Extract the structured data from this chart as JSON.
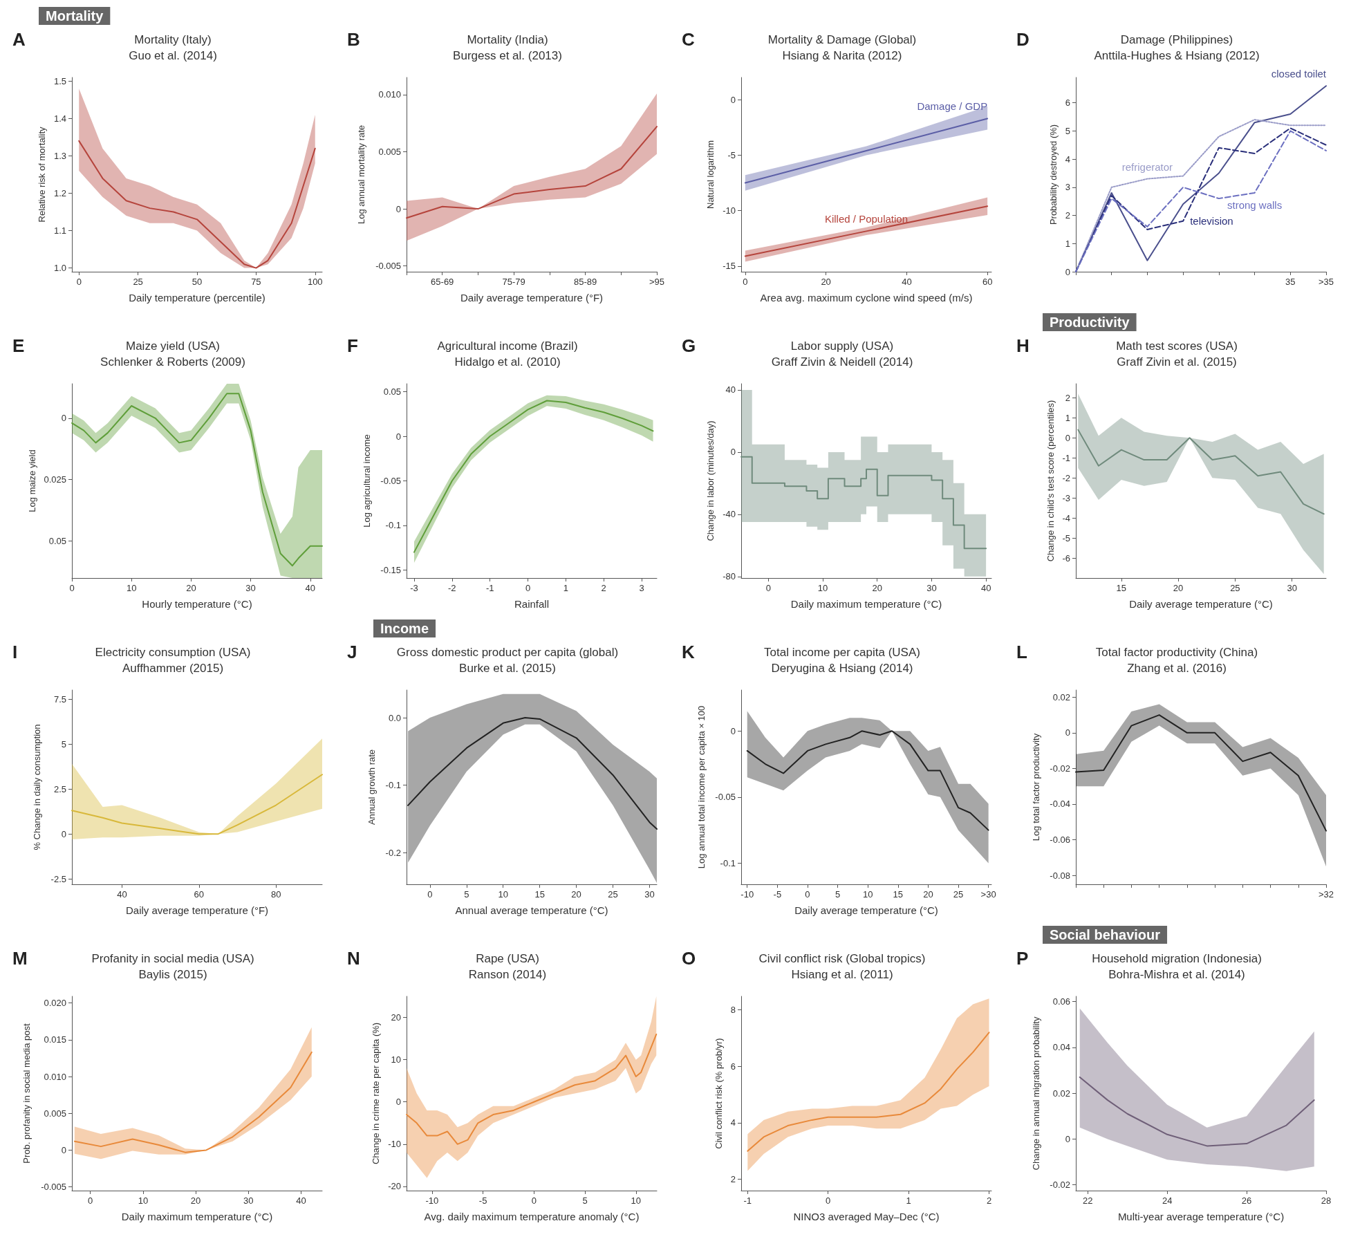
{
  "chart_data": [
    {
      "type": "line",
      "title": "Mortality (Italy)",
      "subtitle": "Guo et al. (2014)",
      "annotations": [
        "A",
        "Mortality"
      ],
      "xlabel": "Daily temperature (percentile)",
      "ylabel": "Relative risk of mortality",
      "xlim": [
        -3,
        103
      ],
      "xticks": [
        0,
        25,
        50,
        75,
        100
      ],
      "ylim": [
        0.99,
        1.51
      ],
      "yticks": [
        {
          "value": 1,
          "label": "1.0"
        },
        1.1,
        1.2,
        1.3,
        1.4,
        1.5
      ],
      "series": [
        {
          "color": "#b5443c",
          "x": [
            0,
            10,
            20,
            30,
            40,
            50,
            60,
            70,
            75,
            80,
            90,
            95,
            100
          ],
          "values": [
            1.34,
            1.24,
            1.18,
            1.16,
            1.15,
            1.13,
            1.07,
            1.01,
            1.0,
            1.02,
            1.12,
            1.22,
            1.32
          ],
          "lower": [
            1.26,
            1.19,
            1.14,
            1.12,
            1.12,
            1.1,
            1.04,
            1.0,
            1.0,
            1.01,
            1.08,
            1.16,
            1.28
          ],
          "upper": [
            1.48,
            1.32,
            1.24,
            1.22,
            1.19,
            1.17,
            1.12,
            1.02,
            1.0,
            1.04,
            1.17,
            1.28,
            1.41
          ]
        }
      ]
    },
    {
      "type": "line",
      "title": "Mortality (India)",
      "subtitle": "Burgess et al. (2013)",
      "annotations": [
        "B"
      ],
      "xlabel": "Daily average temperature (°F)",
      "ylabel": "Log annual mortality rate",
      "categories": [
        null,
        "65-69",
        null,
        "75-79",
        null,
        "85-89",
        null,
        ">95"
      ],
      "ylim": [
        -0.0055,
        0.0115
      ],
      "yticks": [
        {
          "value": -0.005,
          "label": "-0.005"
        },
        0,
        0.005,
        {
          "value": 0.01,
          "label": "0.010"
        }
      ],
      "series": [
        {
          "color": "#b5443c",
          "values": [
            -0.0008,
            0.0002,
            0,
            0.0013,
            0.0017,
            0.002,
            0.0035,
            0.0072
          ],
          "lower": [
            -0.0028,
            -0.0015,
            0,
            0.0005,
            0.0008,
            0.001,
            0.0022,
            0.0048
          ],
          "upper": [
            0.0007,
            0.001,
            0,
            0.002,
            0.0028,
            0.0035,
            0.0055,
            0.0101
          ]
        }
      ]
    },
    {
      "type": "line",
      "title": "Mortality & Damage (Global)",
      "subtitle": "Hsiang & Narita (2012)",
      "annotations": [
        "C"
      ],
      "xlabel": "Area avg. maximum cyclone wind speed (m/s)",
      "ylabel": "Natural logarithm",
      "xlim": [
        -1,
        61
      ],
      "xticks": [
        0,
        20,
        40,
        60
      ],
      "ylim": [
        -15.5,
        2
      ],
      "yticks": [
        -15,
        -10,
        -5,
        0
      ],
      "series": [
        {
          "name": "Damage / GDP",
          "color": "#5b5ea6",
          "x": [
            0,
            30,
            60
          ],
          "values": [
            -7.5,
            -4.6,
            -1.7
          ],
          "lower": [
            -8.2,
            -5.0,
            -2.7
          ],
          "upper": [
            -6.8,
            -4.2,
            -0.6
          ]
        },
        {
          "name": "Killed / Population",
          "color": "#b5443c",
          "x": [
            0,
            30,
            60
          ],
          "values": [
            -14.1,
            -11.85,
            -9.6
          ],
          "lower": [
            -14.6,
            -12.2,
            -10.4
          ],
          "upper": [
            -13.6,
            -11.5,
            -8.8
          ]
        }
      ]
    },
    {
      "type": "line",
      "title": "Damage (Philippines)",
      "subtitle": "Anttila-Hughes & Hsiang (2012)",
      "annotations": [
        "D"
      ],
      "ylabel": "Probability destroyed (%)",
      "categories": [
        null,
        null,
        null,
        null,
        null,
        null,
        "35",
        ">35"
      ],
      "ylim": [
        0,
        6.9
      ],
      "yticks": [
        0,
        1,
        2,
        3,
        4,
        5,
        6
      ],
      "series": [
        {
          "name": "closed toilet",
          "color": "#4a4f8c",
          "line_style": "solid",
          "values": [
            0,
            2.8,
            0.4,
            2.4,
            3.5,
            5.3,
            5.6,
            6.6
          ]
        },
        {
          "name": "refrigerator",
          "color": "#9a9cc8",
          "line_style": "dotted",
          "values": [
            0,
            3.0,
            3.3,
            3.4,
            4.8,
            5.4,
            5.2,
            5.2
          ]
        },
        {
          "name": "television",
          "color": "#2a2f7a",
          "line_style": "dashed",
          "values": [
            0,
            2.7,
            1.5,
            1.8,
            4.4,
            4.2,
            5.1,
            4.5
          ]
        },
        {
          "name": "strong walls",
          "color": "#6b6fc0",
          "line_style": "dashed",
          "values": [
            0,
            2.6,
            1.6,
            3.0,
            2.6,
            2.8,
            5.0,
            4.3
          ]
        }
      ]
    },
    {
      "type": "line",
      "title": "Maize yield (USA)",
      "subtitle": "Schlenker & Roberts (2009)",
      "annotations": [
        "E"
      ],
      "xlabel": "Hourly temperature (°C)",
      "ylabel": "Log maize yield",
      "xlim": [
        0,
        42
      ],
      "xticks": [
        0,
        10,
        20,
        30,
        40
      ],
      "ylim": [
        0.065,
        -0.014
      ],
      "yticks": [
        0,
        0.025,
        0.05
      ],
      "series": [
        {
          "color": "#5f9e3a",
          "x": [
            0,
            2,
            4,
            6,
            10,
            14,
            18,
            20,
            23,
            26,
            28,
            30,
            32,
            35,
            37,
            38,
            40,
            42
          ],
          "values": [
            0.002,
            0.005,
            0.01,
            0.006,
            -0.005,
            0,
            0.01,
            0.009,
            0,
            -0.01,
            -0.01,
            0.005,
            0.03,
            0.055,
            0.06,
            0.057,
            0.052,
            0.052
          ],
          "lower": [
            -0.002,
            0.001,
            0.006,
            0.002,
            -0.009,
            -0.004,
            0.006,
            0.005,
            -0.004,
            -0.014,
            -0.014,
            0.001,
            0.024,
            0.047,
            0.04,
            0.02,
            0.013,
            0.013
          ],
          "upper": [
            0.006,
            0.009,
            0.014,
            0.01,
            -0.001,
            0.004,
            0.014,
            0.013,
            0.004,
            -0.006,
            -0.006,
            0.009,
            0.036,
            0.064,
            0.065,
            0.065,
            0.065,
            0.065
          ]
        }
      ]
    },
    {
      "type": "line",
      "title": "Agricultural income (Brazil)",
      "subtitle": "Hidalgo et al. (2010)",
      "annotations": [
        "F"
      ],
      "xlabel": "Rainfall",
      "ylabel": "Log agricultural income",
      "xlim": [
        -3.2,
        3.4
      ],
      "xticks": [
        -3,
        -2,
        -1,
        0,
        1,
        2,
        3
      ],
      "ylim": [
        -0.159,
        0.059
      ],
      "yticks": [
        -0.15,
        -0.1,
        -0.05,
        0,
        0.05
      ],
      "series": [
        {
          "color": "#5f9e3a",
          "x": [
            -3,
            -2.5,
            -2,
            -1.5,
            -1,
            -0.5,
            0,
            0.5,
            1,
            1.5,
            2,
            2.5,
            3,
            3.3
          ],
          "values": [
            -0.13,
            -0.09,
            -0.05,
            -0.02,
            0,
            0.015,
            0.03,
            0.04,
            0.038,
            0.032,
            0.027,
            0.02,
            0.012,
            0.006
          ],
          "lower": [
            -0.142,
            -0.1,
            -0.058,
            -0.027,
            -0.007,
            0.008,
            0.023,
            0.034,
            0.031,
            0.024,
            0.018,
            0.01,
            0.001,
            -0.006
          ],
          "upper": [
            -0.118,
            -0.08,
            -0.042,
            -0.013,
            0.007,
            0.022,
            0.037,
            0.046,
            0.045,
            0.04,
            0.036,
            0.03,
            0.023,
            0.018
          ]
        }
      ]
    },
    {
      "type": "step",
      "title": "Labor supply (USA)",
      "subtitle": "Graff Zivin & Neidell (2014)",
      "annotations": [
        "G"
      ],
      "xlabel": "Daily maximum temperature (°C)",
      "ylabel": "Change in labor (minutes/day)",
      "xlim": [
        -5,
        41
      ],
      "xticks": [
        0,
        10,
        20,
        30,
        40
      ],
      "ylim": [
        -81,
        44
      ],
      "yticks": [
        -80,
        -40,
        0,
        40
      ],
      "series": [
        {
          "color": "#6f8a7c",
          "x": [
            -5,
            -3,
            3,
            7,
            9,
            11,
            14,
            17,
            18,
            20,
            22,
            24,
            30,
            32,
            34,
            36,
            38,
            40
          ],
          "values": [
            -3,
            -20,
            -22,
            -25,
            -30,
            -17,
            -22,
            -17,
            -11,
            -28,
            -15,
            -15,
            -18,
            -30,
            -47,
            -62,
            -62,
            -62
          ],
          "lower": [
            -45,
            -45,
            -45,
            -48,
            -50,
            -45,
            -45,
            -40,
            -35,
            -45,
            -40,
            -40,
            -45,
            -60,
            -75,
            -80,
            -80,
            -80
          ],
          "upper": [
            40,
            5,
            -5,
            -8,
            -10,
            0,
            -5,
            10,
            10,
            0,
            5,
            5,
            0,
            -5,
            -20,
            -40,
            -40,
            -40
          ]
        }
      ]
    },
    {
      "type": "line",
      "title": "Math test scores (USA)",
      "subtitle": "Graff Zivin et al. (2015)",
      "annotations": [
        "H",
        "Productivity"
      ],
      "xlabel": "Daily average temperature (°C)",
      "ylabel": "Change in child's test score (percentiles)",
      "xlim": [
        11,
        33
      ],
      "xticks": [
        15,
        20,
        25,
        30
      ],
      "ylim": [
        -7,
        2.7
      ],
      "yticks": [
        -6,
        -5,
        -4,
        -3,
        -2,
        -1,
        0,
        1,
        2
      ],
      "series": [
        {
          "color": "#6f8a7c",
          "x": [
            11.2,
            13,
            15,
            17,
            19,
            21,
            23,
            25,
            27,
            29,
            31,
            32.8
          ],
          "values": [
            0.4,
            -1.4,
            -0.6,
            -1.1,
            -1.1,
            0,
            -1.1,
            -0.9,
            -1.9,
            -1.7,
            -3.3,
            -3.8
          ],
          "lower": [
            -1.5,
            -3.1,
            -2.1,
            -2.4,
            -2.2,
            0,
            -2.0,
            -2.1,
            -3.5,
            -3.8,
            -5.6,
            -6.8
          ],
          "upper": [
            2.2,
            0.1,
            1.0,
            0.3,
            0.1,
            0,
            -0.2,
            0.2,
            -0.6,
            -0.2,
            -1.3,
            -0.8
          ]
        }
      ]
    },
    {
      "type": "line",
      "title": "Electricity consumption (USA)",
      "subtitle": "Auffhammer (2015)",
      "annotations": [
        "I"
      ],
      "xlabel": "Daily average temperature (°F)",
      "ylabel": "% Change in daily consumption",
      "xlim": [
        27,
        92
      ],
      "xticks": [
        40,
        60,
        80
      ],
      "ylim": [
        -2.8,
        8
      ],
      "yticks": [
        -2.5,
        0,
        2.5,
        5,
        7.5
      ],
      "series": [
        {
          "color": "#d8b83a",
          "x": [
            27,
            35,
            40,
            50,
            60,
            65,
            70,
            80,
            92
          ],
          "values": [
            1.3,
            0.9,
            0.6,
            0.3,
            0,
            0,
            0.5,
            1.6,
            3.3
          ],
          "lower": [
            -0.3,
            -0.2,
            -0.2,
            -0.1,
            -0.1,
            0,
            0.1,
            0.7,
            1.4
          ],
          "upper": [
            3.9,
            1.5,
            1.6,
            0.9,
            0.1,
            0,
            1.0,
            2.8,
            5.3
          ]
        }
      ]
    },
    {
      "type": "line",
      "title": "Gross domestic product per capita (global)",
      "subtitle": "Burke et al. (2015)",
      "annotations": [
        "J",
        "Income"
      ],
      "xlabel": "Annual average temperature (°C)",
      "ylabel": "Annual growth rate",
      "xlim": [
        -3.2,
        31
      ],
      "xticks": [
        0,
        5,
        10,
        15,
        20,
        25,
        30
      ],
      "ylim": [
        -0.247,
        0.041
      ],
      "yticks": [
        {
          "value": -0.2,
          "label": "-0.2"
        },
        {
          "value": -0.1,
          "label": "-0.1"
        },
        {
          "value": 0,
          "label": "0.0"
        }
      ],
      "series": [
        {
          "color": "#222222",
          "x": [
            -3,
            0,
            5,
            10,
            13,
            15,
            20,
            25,
            30,
            31
          ],
          "values": [
            -0.13,
            -0.095,
            -0.045,
            -0.008,
            0,
            -0.002,
            -0.03,
            -0.085,
            -0.155,
            -0.165
          ],
          "lower": [
            -0.215,
            -0.16,
            -0.08,
            -0.025,
            -0.01,
            -0.01,
            -0.05,
            -0.13,
            -0.225,
            -0.245
          ],
          "upper": [
            -0.02,
            0,
            0.02,
            0.035,
            0.035,
            0.035,
            0.01,
            -0.04,
            -0.08,
            -0.09
          ]
        }
      ]
    },
    {
      "type": "line",
      "title": "Total income per capita (USA)",
      "subtitle": "Deryugina & Hsiang (2014)",
      "annotations": [
        "K"
      ],
      "xlabel": "Daily average temperature (°C)",
      "ylabel": "Log annual total income per capita × 100",
      "xlim": [
        -11,
        30.5
      ],
      "xticks": [
        -10,
        -5,
        0,
        5,
        10,
        15,
        20,
        25,
        {
          "value": 30,
          "label": ">30"
        }
      ],
      "ylim": [
        -0.116,
        0.031
      ],
      "yticks": [
        -0.1,
        -0.05,
        0
      ],
      "series": [
        {
          "color": "#222222",
          "x": [
            -10,
            -7,
            -4,
            0,
            3,
            7,
            9,
            12,
            14,
            17,
            20,
            22,
            25,
            27,
            30
          ],
          "values": [
            -0.015,
            -0.025,
            -0.032,
            -0.015,
            -0.01,
            -0.005,
            0,
            -0.003,
            0,
            -0.01,
            -0.03,
            -0.03,
            -0.058,
            -0.062,
            -0.075
          ],
          "lower": [
            -0.035,
            -0.04,
            -0.045,
            -0.03,
            -0.02,
            -0.015,
            -0.01,
            -0.013,
            0,
            -0.025,
            -0.048,
            -0.05,
            -0.075,
            -0.085,
            -0.1
          ],
          "upper": [
            0.015,
            -0.005,
            -0.02,
            0,
            0.005,
            0.01,
            0.01,
            0.008,
            0,
            0,
            -0.015,
            -0.012,
            -0.04,
            -0.04,
            -0.055
          ]
        }
      ]
    },
    {
      "type": "line",
      "title": "Total factor productivity (China)",
      "subtitle": "Zhang et al. (2016)",
      "annotations": [
        "L"
      ],
      "ylabel": "Log total factor productivity",
      "categories": [
        null,
        null,
        null,
        null,
        null,
        null,
        null,
        null,
        null,
        ">32"
      ],
      "ylim": [
        -0.085,
        0.024
      ],
      "yticks": [
        -0.08,
        -0.06,
        -0.04,
        -0.02,
        0,
        0.02
      ],
      "series": [
        {
          "color": "#222222",
          "values": [
            -0.022,
            -0.021,
            0.004,
            0.01,
            0,
            0,
            -0.016,
            -0.011,
            -0.024,
            -0.055
          ],
          "lower": [
            -0.03,
            -0.03,
            -0.005,
            0.004,
            -0.006,
            -0.006,
            -0.024,
            -0.02,
            -0.035,
            -0.075
          ],
          "upper": [
            -0.012,
            -0.01,
            0.012,
            0.016,
            0.006,
            0.006,
            -0.008,
            -0.003,
            -0.014,
            -0.035
          ]
        }
      ]
    },
    {
      "type": "line",
      "title": "Profanity in social media (USA)",
      "subtitle": "Baylis (2015)",
      "annotations": [
        "M"
      ],
      "xlabel": "Daily maximum temperature (°C)",
      "ylabel": "Prob. profanity in social media post",
      "xlim": [
        -3.5,
        44
      ],
      "xticks": [
        0,
        10,
        20,
        30,
        40
      ],
      "ylim": [
        -0.0055,
        0.0209
      ],
      "yticks": [
        -0.005,
        0,
        {
          "value": 0.005,
          "label": "0.005"
        },
        {
          "value": 0.01,
          "label": "0.010"
        },
        {
          "value": 0.015,
          "label": "0.015"
        },
        {
          "value": 0.02,
          "label": "0.020"
        }
      ],
      "series": [
        {
          "color": "#e8893a",
          "x": [
            -3,
            2,
            8,
            13,
            18,
            22,
            27,
            32,
            38,
            42
          ],
          "values": [
            0.0012,
            0.0005,
            0.0015,
            0.0007,
            -0.0003,
            0,
            0.0018,
            0.0045,
            0.0085,
            0.0133
          ],
          "lower": [
            -0.0005,
            -0.0012,
            -0.0001,
            -0.0006,
            -0.0006,
            0,
            0.0012,
            0.0035,
            0.0068,
            0.01
          ],
          "upper": [
            0.0032,
            0.0022,
            0.003,
            0.002,
            0.0002,
            0,
            0.0025,
            0.0058,
            0.011,
            0.0167
          ]
        }
      ]
    },
    {
      "type": "line",
      "title": "Rape (USA)",
      "subtitle": "Ranson (2014)",
      "annotations": [
        "N"
      ],
      "xlabel": "Avg. daily maximum temperature anomaly (°C)",
      "ylabel": "Change in crime rate per capita (%)",
      "xlim": [
        -12.5,
        12.05
      ],
      "xticks": [
        -10,
        -5,
        0,
        5,
        10
      ],
      "ylim": [
        -21,
        25
      ],
      "yticks": [
        -20,
        -10,
        0,
        10,
        20
      ],
      "series": [
        {
          "color": "#e8893a",
          "x": [
            -12.5,
            -11.5,
            -10.5,
            -9.5,
            -8.5,
            -7.5,
            -6.5,
            -5.5,
            -4,
            -2,
            0,
            2,
            4,
            6,
            8,
            9,
            10,
            10.5,
            11.5,
            12
          ],
          "values": [
            -3,
            -5,
            -8,
            -8,
            -7,
            -10,
            -9,
            -5,
            -3,
            -2,
            0,
            2,
            4,
            5,
            8,
            11,
            6,
            7,
            13,
            16
          ],
          "lower": [
            -12,
            -15,
            -18,
            -14,
            -12,
            -14,
            -12,
            -8,
            -5,
            -3,
            -1,
            1,
            2,
            3,
            5,
            8,
            2,
            3,
            9,
            11
          ],
          "upper": [
            8,
            2,
            -2,
            -2,
            -3,
            -6,
            -5,
            -3,
            -1,
            -1,
            1,
            3,
            6,
            7,
            10,
            14,
            10,
            11,
            19,
            25
          ]
        }
      ]
    },
    {
      "type": "line",
      "title": "Civil conflict risk (Global tropics)",
      "subtitle": "Hsiang et al. (2011)",
      "annotations": [
        "O"
      ],
      "xlabel": "NINO3 averaged May–Dec (°C)",
      "ylabel": "Civil conflict risk (% prob/yr)",
      "xlim": [
        -1.08,
        2.03
      ],
      "xticks": [
        -1,
        0,
        1,
        2
      ],
      "ylim": [
        1.6,
        8.48
      ],
      "yticks": [
        2,
        4,
        6,
        8
      ],
      "series": [
        {
          "color": "#e8893a",
          "x": [
            -1,
            -0.8,
            -0.5,
            -0.2,
            0,
            0.3,
            0.6,
            0.9,
            1.2,
            1.4,
            1.6,
            1.8,
            2
          ],
          "values": [
            3.0,
            3.5,
            3.9,
            4.1,
            4.2,
            4.2,
            4.2,
            4.3,
            4.7,
            5.2,
            5.9,
            6.5,
            7.2
          ],
          "lower": [
            2.3,
            2.9,
            3.5,
            3.8,
            3.9,
            3.9,
            3.8,
            3.8,
            4.1,
            4.5,
            4.6,
            5.0,
            5.3
          ],
          "upper": [
            3.6,
            4.1,
            4.4,
            4.5,
            4.5,
            4.6,
            4.6,
            4.8,
            5.6,
            6.6,
            7.7,
            8.2,
            8.4
          ]
        }
      ]
    },
    {
      "type": "line",
      "title": "Household migration (Indonesia)",
      "subtitle": "Bohra-Mishra et al. (2014)",
      "annotations": [
        "P",
        "Social behaviour"
      ],
      "xlabel": "Multi-year average temperature (°C)",
      "ylabel": "Change in annual migration probability",
      "xlim": [
        21.7,
        28
      ],
      "xticks": [
        22,
        24,
        26,
        28
      ],
      "ylim": [
        -0.0225,
        0.0623
      ],
      "yticks": [
        -0.02,
        0,
        0.02,
        0.04,
        0.06
      ],
      "series": [
        {
          "color": "#6f5f78",
          "x": [
            21.8,
            22.5,
            23,
            24,
            25,
            26,
            27,
            27.7
          ],
          "values": [
            0.027,
            0.017,
            0.011,
            0.002,
            -0.003,
            -0.002,
            0.006,
            0.017
          ],
          "lower": [
            0.005,
            0,
            -0.003,
            -0.009,
            -0.011,
            -0.012,
            -0.014,
            -0.012
          ],
          "upper": [
            0.057,
            0.042,
            0.032,
            0.015,
            0.005,
            0.01,
            0.032,
            0.047
          ]
        }
      ]
    }
  ]
}
